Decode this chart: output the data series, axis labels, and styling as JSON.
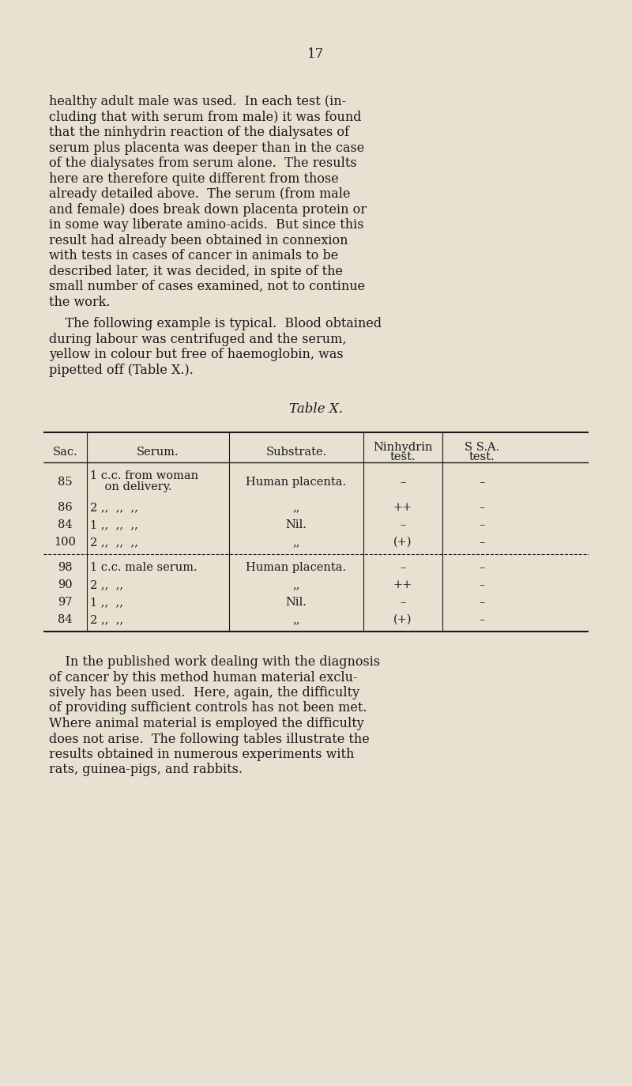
{
  "background_color": "#e8e0d0",
  "page_number": "17",
  "paragraph1": "healthy adult male was used.  In each test (in-\ncluding that with serum from male) it was found\nthat the ninhydrin reaction of the dialysates of\nserum plus placenta was deeper than in the case\nof the dialysates from serum alone.  The results\nhere are therefore quite different from those\nalready detailed above.  The serum (from male\nand female) does break down placenta protein or\nin some way liberate amino-acids.  But since this\nresult had already been obtained in connexion\nwith tests in cases of cancer in animals to be\ndescribed later, it was decided, in spite of the\nsmall number of cases examined, not to continue\nthe work.",
  "paragraph2": "    The following example is typical.  Blood obtained\nduring labour was centrifuged and the serum,\nyellow in colour but free of haemoglobin, was\npipetted off (Table X.).",
  "table_title": "Table X.",
  "table_headers": [
    "Sac.",
    "Serum.",
    "Substrate.",
    "Ninhydrin\ntest.",
    "S S.A.\ntest."
  ],
  "table_rows": [
    [
      "85",
      "1 c.c. from woman\n    on delivery.",
      "Human placenta.",
      "–",
      "–"
    ],
    [
      "86",
      "2 ,,  ,,  ,,",
      ",,",
      "++",
      "–"
    ],
    [
      "84",
      "1 ,,  ,,  ,,",
      "Nil.",
      "–",
      "–"
    ],
    [
      "100",
      "2 ,,  ,,  ,,",
      ",,",
      "(+)",
      "–"
    ],
    [
      "98",
      "1 c.c. male serum.",
      "Human placenta.",
      "–",
      "–"
    ],
    [
      "90",
      "2 ,,  ,,",
      ",,",
      "++",
      "–"
    ],
    [
      "97",
      "1 ,,  ,,",
      "Nil.",
      "–",
      "–"
    ],
    [
      "84",
      "2 ,,  ,,",
      ",,",
      "(+)",
      "–"
    ]
  ],
  "paragraph3": "    In the published work dealing with the diagnosis\nof cancer by this method human material exclu-\nsively has been used.  Here, again, the difficulty\nof providing sufficient controls has not been met.\nWhere animal material is employed the difficulty\ndoes not arise.  The following tables illustrate the\nresults obtained in numerous experiments with\nrats, guinea-pigs, and rabbits.",
  "font_size_body": 11.5,
  "font_size_page_num": 12,
  "font_size_table_title": 12,
  "font_size_table": 10.5
}
